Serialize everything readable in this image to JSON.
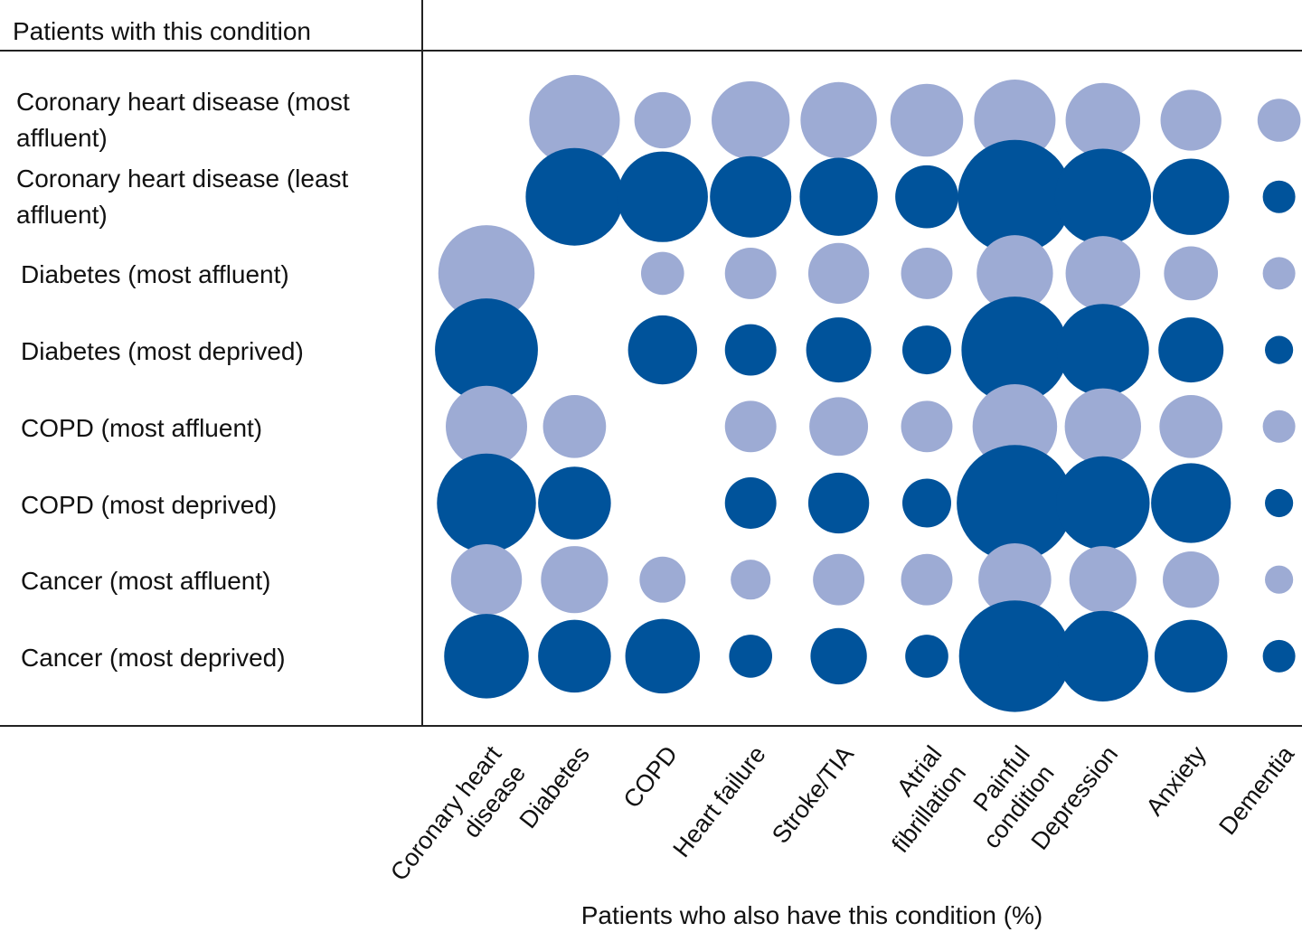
{
  "chart_data": {
    "type": "bubble-matrix",
    "header": "Patients with this condition",
    "x_label": "Patients who also have this condition (%)",
    "categories": [
      "Coronary heart disease",
      "Diabetes",
      "COPD",
      "Heart failure",
      "Stroke/TIA",
      "Atrial fibrillation",
      "Painful condition",
      "Depression",
      "Anxiety",
      "Dementia"
    ],
    "series": [
      {
        "name": "Coronary heart disease (most affluent)",
        "color": "#9dabd4",
        "values": [
          null,
          31,
          12,
          23,
          22,
          20,
          25,
          21,
          14,
          7
        ]
      },
      {
        "name": "Coronary heart disease (least affluent)",
        "color": "#00539b",
        "values": [
          null,
          36,
          31,
          25,
          23,
          15,
          49,
          35,
          22,
          4
        ]
      },
      {
        "name": "Diabetes (most affluent)",
        "color": "#9dabd4",
        "values": [
          35,
          null,
          7,
          10,
          14,
          10,
          22,
          21,
          11,
          4
        ]
      },
      {
        "name": "Diabetes (most deprived)",
        "color": "#00539b",
        "values": [
          40,
          null,
          18,
          10,
          16,
          9,
          43,
          32,
          16,
          3
        ]
      },
      {
        "name": "COPD (most affluent)",
        "color": "#9dabd4",
        "values": [
          25,
          15,
          null,
          10,
          13,
          10,
          27,
          22,
          15,
          4
        ]
      },
      {
        "name": "COPD (most deprived)",
        "color": "#00539b",
        "values": [
          37,
          20,
          null,
          10,
          14,
          9,
          51,
          33,
          24,
          3
        ]
      },
      {
        "name": "Cancer (most affluent)",
        "color": "#9dabd4",
        "values": [
          19,
          17,
          8,
          6,
          10,
          10,
          20,
          17,
          12,
          3
        ]
      },
      {
        "name": "Cancer (most deprived)",
        "color": "#00539b",
        "values": [
          27,
          20,
          21,
          7,
          12,
          7,
          47,
          31,
          20,
          4
        ]
      }
    ]
  }
}
